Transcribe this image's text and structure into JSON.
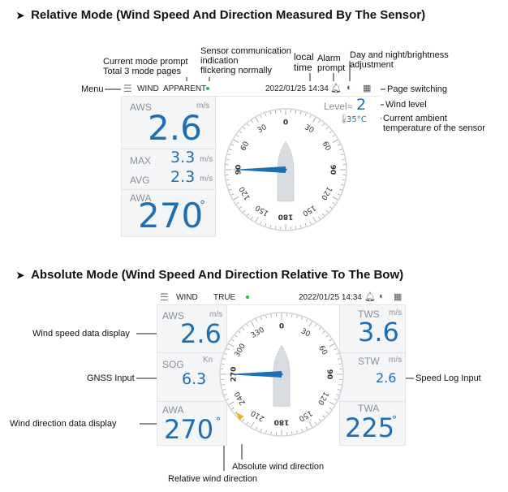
{
  "relative": {
    "heading": "Relative Mode (Wind Speed And Direction Measured By The Sensor)",
    "topbar": {
      "mode": "WIND",
      "submode": "APPARENT",
      "datetime": "2022/01/25 14:34"
    },
    "aws": {
      "label": "AWS",
      "unit": "m/s",
      "value": "2.6"
    },
    "max": {
      "label": "MAX",
      "value": "3.3",
      "unit": "m/s"
    },
    "avg": {
      "label": "AVG",
      "value": "2.3",
      "unit": "m/s"
    },
    "awa": {
      "label": "AWA",
      "value": "270",
      "deg": "°"
    },
    "level": {
      "label": "Level≈",
      "value": "2"
    },
    "temp": {
      "value": "35°C"
    },
    "compass_labels": [
      "0",
      "30",
      "60",
      "90",
      "120",
      "150",
      "180",
      "150",
      "120",
      "90",
      "60",
      "30"
    ],
    "pointer_angle_deg": 270,
    "annotations": {
      "menu": "Menu",
      "mode_prompt_1": "Current mode prompt",
      "mode_prompt_2": "Total 3 mode pages",
      "sensor_1": "Sensor communication",
      "sensor_2": "indication",
      "sensor_3": "flickering normally",
      "local_1": "local",
      "local_2": "time",
      "alarm_1": "Alarm",
      "alarm_2": "prompt",
      "day_1": "Day and night/brightness",
      "day_2": "adjustment",
      "page_switching": "Page switching",
      "wind_level": "Wind level",
      "current_1": "Current ambient",
      "current_2": "temperature of the sensor"
    }
  },
  "absolute": {
    "heading": "Absolute Mode (Wind Speed And Direction Relative To The Bow)",
    "topbar": {
      "mode": "WIND",
      "submode": "TRUE",
      "datetime": "2022/01/25 14:34"
    },
    "aws": {
      "label": "AWS",
      "unit": "m/s",
      "value": "2.6"
    },
    "sog": {
      "label": "SOG",
      "unit": "Kn",
      "value": "6.3"
    },
    "awa": {
      "label": "AWA",
      "value": "270",
      "deg": "°"
    },
    "tws": {
      "label": "TWS",
      "unit": "m/s",
      "value": "3.6"
    },
    "stw": {
      "label": "STW",
      "unit": "m/s",
      "value": "2.6"
    },
    "twa": {
      "label": "TWA",
      "value": "225",
      "deg": "°"
    },
    "compass_labels": [
      "0",
      "30",
      "60",
      "90",
      "120",
      "150",
      "180",
      "210",
      "240",
      "270",
      "300",
      "330"
    ],
    "pointer_angle_deg": 270,
    "true_angle_deg": 225,
    "annotations": {
      "speed_display": "Wind speed data display",
      "gnss": "GNSS Input",
      "direction_display": "Wind direction data display",
      "speed_log": "Speed Log Input",
      "absolute_dir": "Absolute wind direction",
      "relative_dir": "Relative wind direction"
    }
  },
  "colors": {
    "accent": "#1d6fb5",
    "status_dot": "#2fb34a",
    "true_marker": "#f2b21a"
  }
}
